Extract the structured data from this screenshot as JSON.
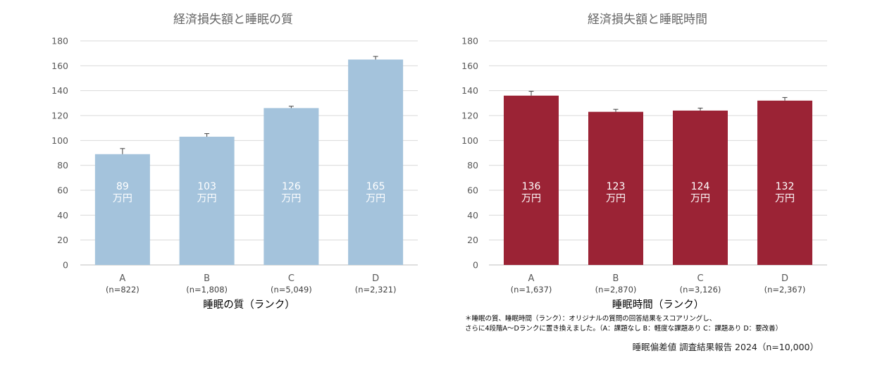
{
  "chart_data": [
    {
      "type": "bar",
      "title": "経済損失額と睡眠の質",
      "xlabel": "睡眠の質（ランク）",
      "ylabel": "",
      "ylim": [
        0,
        180
      ],
      "ytick_step": 20,
      "grid": true,
      "color": "#a4c3dc",
      "categories": [
        "A",
        "B",
        "C",
        "D"
      ],
      "counts": [
        "(n=822)",
        "(n=1,808)",
        "(n=5,049)",
        "(n=2,321)"
      ],
      "values": [
        89,
        103,
        126,
        165
      ],
      "errors": [
        4.5,
        2.5,
        1.5,
        2.5
      ],
      "unit_label": "万円"
    },
    {
      "type": "bar",
      "title": "経済損失額と睡眠時間",
      "xlabel": "睡眠時間（ランク）",
      "ylabel": "",
      "ylim": [
        0,
        180
      ],
      "ytick_step": 20,
      "grid": true,
      "color": "#9b2335",
      "categories": [
        "A",
        "B",
        "C",
        "D"
      ],
      "counts": [
        "(n=1,637)",
        "(n=2,870)",
        "(n=3,126)",
        "(n=2,367)"
      ],
      "values": [
        136,
        123,
        124,
        132
      ],
      "errors": [
        3.5,
        2.0,
        2.0,
        2.5
      ],
      "unit_label": "万円"
    }
  ],
  "footnote": {
    "line1": "＊睡眠の質、睡眠時間（ランク）：オリジナルの質問の回答結果をスコアリングし、",
    "line2": "さらに4段階A〜Dランクに置き換えました。（A：課題なし B：軽度な課題あり C：課題あり D：要改善）"
  },
  "source": "睡眠偏差値 調査結果報告 2024（n=10,000）"
}
